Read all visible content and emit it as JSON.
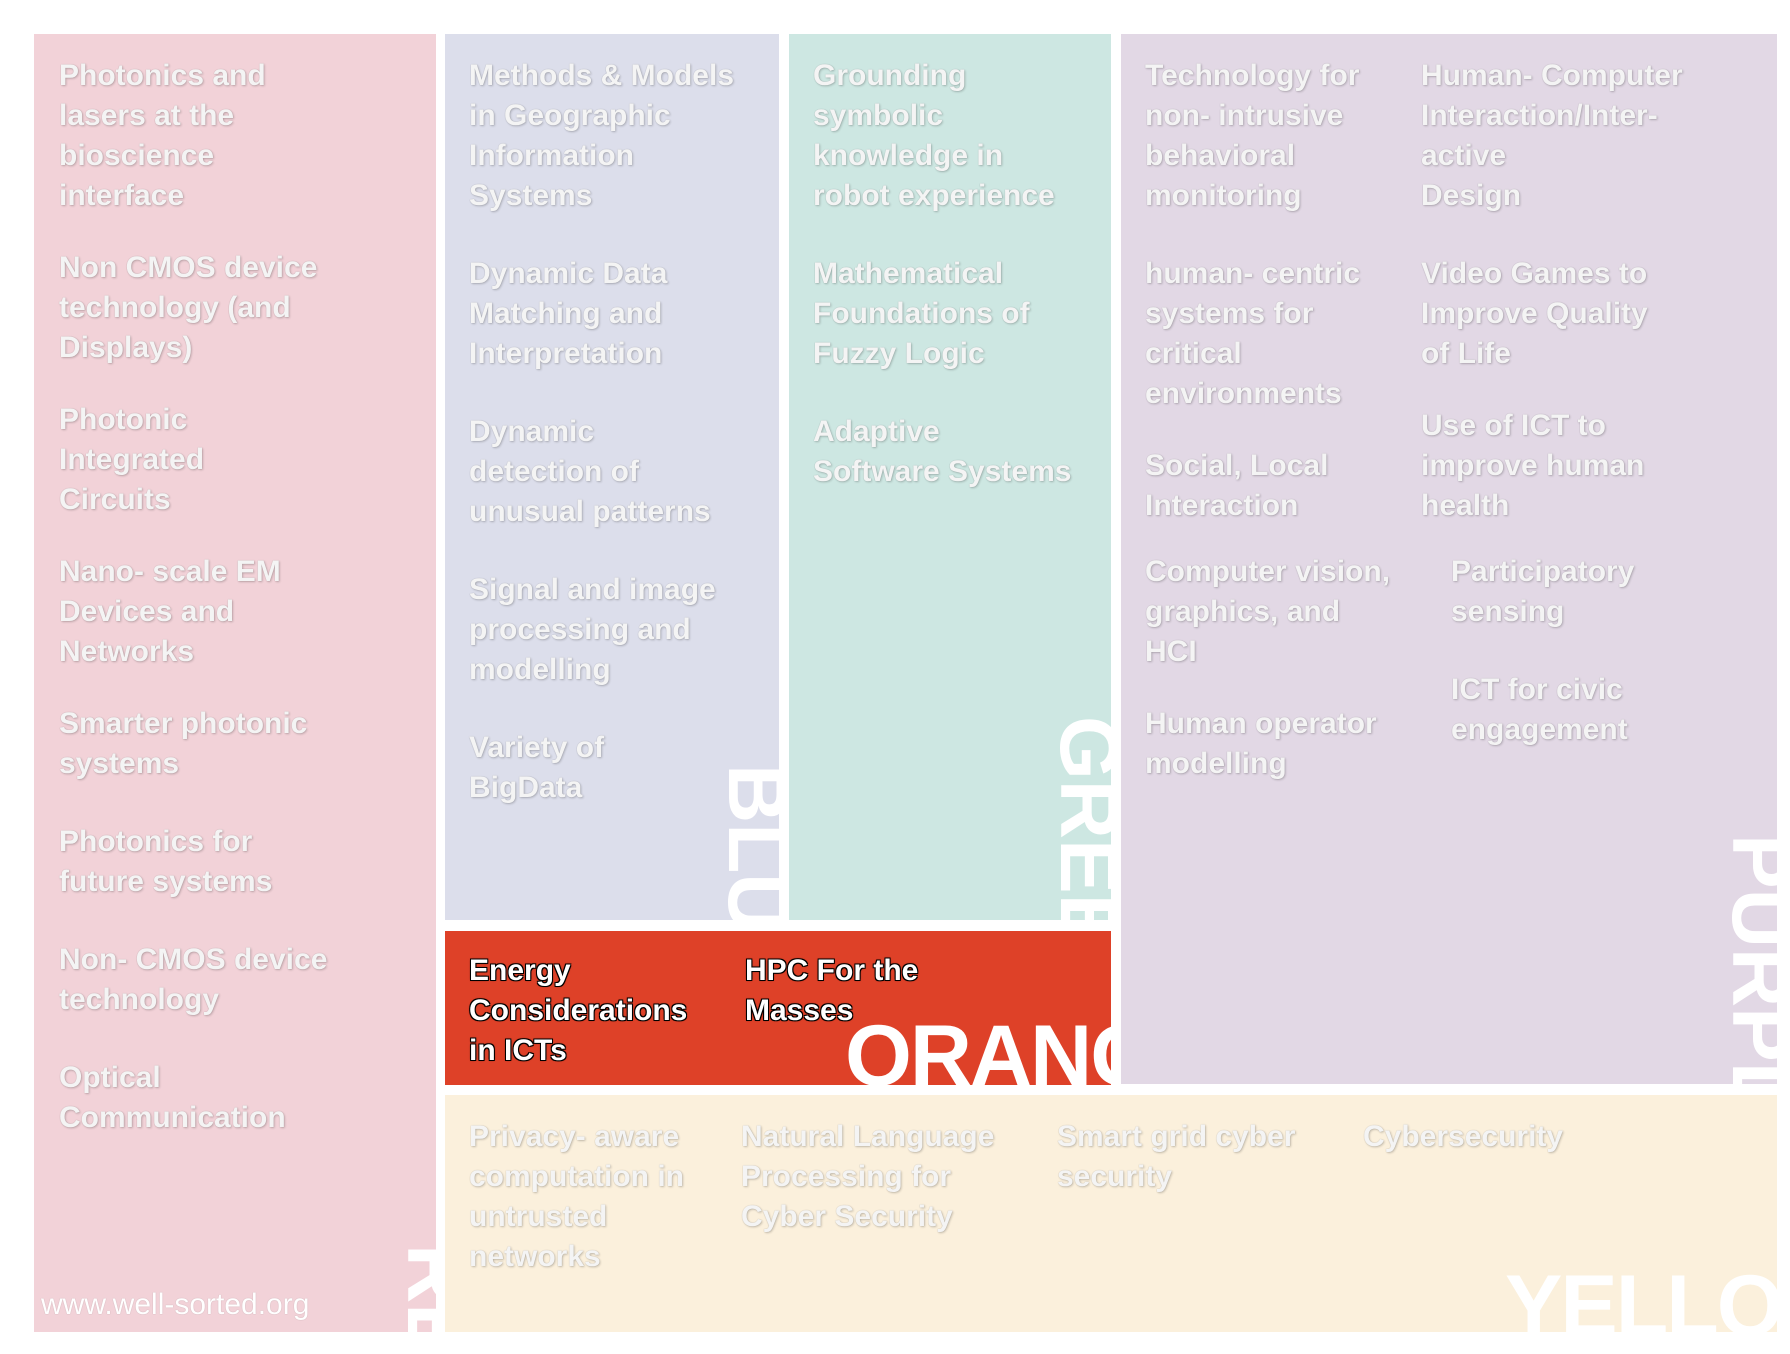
{
  "colors": {
    "red": "#f2d2d8",
    "blue": "#dcdeeb",
    "green": "#cde7e2",
    "purple": "#e2d8e5",
    "orange": "#de4128",
    "yellow": "#fbf0dc"
  },
  "red": {
    "label": "RED",
    "items": [
      "Photonics and\nlasers at the\nbioscience\ninterface",
      "Non CMOS device\ntechnology (and\nDisplays)",
      "Photonic\nIntegrated\nCircuits",
      "Nano- scale EM\nDevices and\nNetworks",
      "Smarter photonic\nsystems",
      "Photonics for\nfuture systems",
      "Non- CMOS device\ntechnology",
      "Optical\nCommunication"
    ],
    "website": "www.well-sorted.org"
  },
  "blue": {
    "label": "BLUE",
    "items": [
      "Methods & Models\nin Geographic\nInformation\nSystems",
      "Dynamic Data\nMatching and\nInterpretation",
      "Dynamic\ndetection of\nunusual patterns",
      "Signal and image\nprocessing and\nmodelling",
      "Variety of\nBigData"
    ]
  },
  "green": {
    "label": "GREEN",
    "items": [
      "Grounding\nsymbolic\nknowledge in\nrobot experience",
      "Mathematical\nFoundations of\nFuzzy Logic",
      "Adaptive\nSoftware Systems"
    ]
  },
  "purple": {
    "label": "PURPLE",
    "col1": [
      "Technology for\nnon- intrusive\nbehavioral\nmonitoring",
      "human- centric\nsystems for\ncritical\nenvironments",
      "Social, Local\nInteraction",
      "Computer vision,\ngraphics, and\nHCI",
      "Human operator\nmodelling"
    ],
    "col2": [
      "Human- Computer\nInteraction/Inter-\nactive\nDesign",
      "Video Games to\nImprove Quality\nof Life",
      "Use of ICT to\nimprove human\nhealth",
      "Participatory\nsensing",
      "ICT for civic\nengagement"
    ]
  },
  "orange": {
    "label": "ORANGE",
    "items": [
      "Energy\nConsiderations\nin ICTs",
      "HPC For the\nMasses"
    ]
  },
  "yellow": {
    "label": "YELLOW",
    "items": [
      "Privacy- aware\ncomputation in\nuntrusted\nnetworks",
      "Natural Language\nProcessing for\nCyber Security",
      "Smart grid cyber\nsecurity",
      "Cybersecurity"
    ]
  }
}
